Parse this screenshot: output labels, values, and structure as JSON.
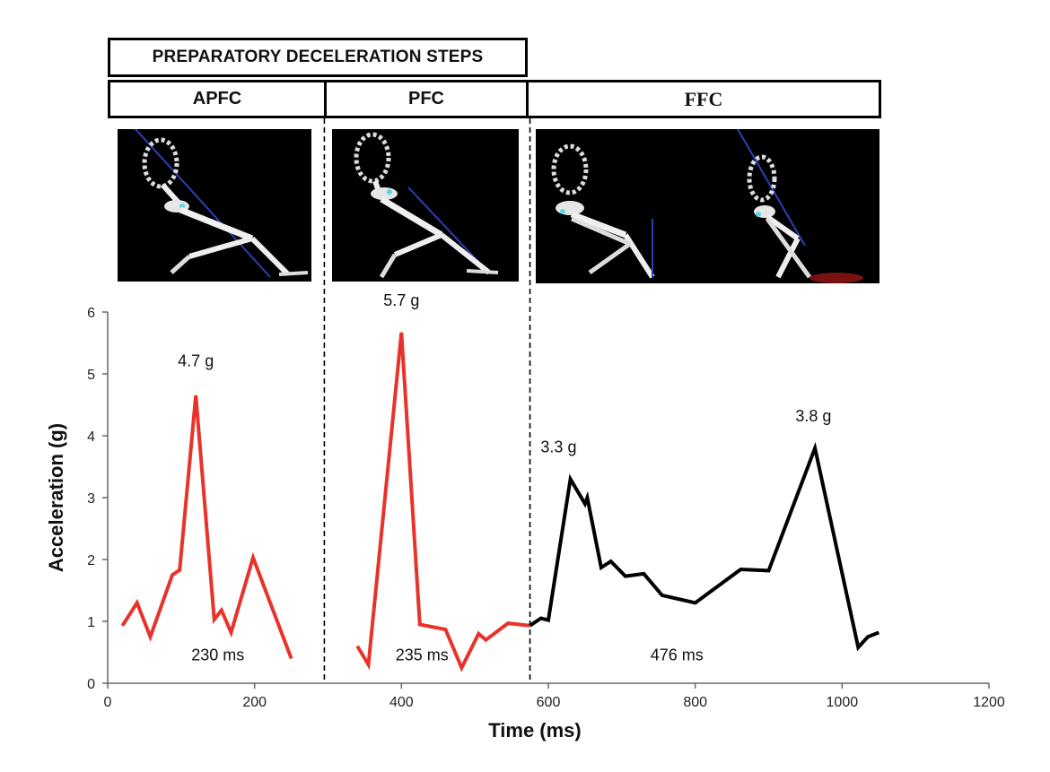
{
  "header": {
    "title": "PREPARATORY DECELERATION STEPS",
    "phases": [
      "APFC",
      "PFC",
      "FFC"
    ]
  },
  "images": {
    "apfc": "skeleton-simulation-apfc",
    "pfc": "skeleton-simulation-pfc",
    "ffc": "skeleton-simulation-ffc"
  },
  "colors": {
    "prep_series": "#e8332a",
    "ffc_series": "#000000",
    "panel_bg": "#000000"
  },
  "chart_data": {
    "type": "line",
    "xlabel": "Time (ms)",
    "ylabel": "Acceleration (g)",
    "xlim": [
      0,
      1200
    ],
    "ylim": [
      0,
      6
    ],
    "xticks": [
      0,
      200,
      400,
      600,
      800,
      1000,
      1200
    ],
    "yticks": [
      0,
      1,
      2,
      3,
      4,
      5,
      6
    ],
    "phase_dividers": [
      295,
      575
    ],
    "series": [
      {
        "name": "APFC",
        "color": "#e8332a",
        "points": [
          [
            20,
            0.93
          ],
          [
            40,
            1.3
          ],
          [
            58,
            0.75
          ],
          [
            88,
            1.75
          ],
          [
            98,
            1.83
          ],
          [
            120,
            4.65
          ],
          [
            145,
            1.03
          ],
          [
            155,
            1.18
          ],
          [
            168,
            0.82
          ],
          [
            198,
            2.03
          ],
          [
            250,
            0.4
          ]
        ]
      },
      {
        "name": "PFC",
        "color": "#e8332a",
        "points": [
          [
            340,
            0.6
          ],
          [
            355,
            0.3
          ],
          [
            400,
            5.67
          ],
          [
            425,
            0.95
          ],
          [
            460,
            0.87
          ],
          [
            482,
            0.25
          ],
          [
            505,
            0.8
          ],
          [
            515,
            0.7
          ],
          [
            545,
            0.97
          ],
          [
            575,
            0.93
          ]
        ]
      },
      {
        "name": "FFC",
        "color": "#000000",
        "points": [
          [
            575,
            0.93
          ],
          [
            590,
            1.05
          ],
          [
            600,
            1.02
          ],
          [
            630,
            3.3
          ],
          [
            650,
            2.9
          ],
          [
            653,
            3.0
          ],
          [
            672,
            1.87
          ],
          [
            685,
            1.97
          ],
          [
            705,
            1.73
          ],
          [
            730,
            1.77
          ],
          [
            755,
            1.42
          ],
          [
            800,
            1.3
          ],
          [
            862,
            1.84
          ],
          [
            900,
            1.82
          ],
          [
            963,
            3.8
          ],
          [
            1022,
            0.58
          ],
          [
            1035,
            0.75
          ],
          [
            1050,
            0.82
          ]
        ]
      }
    ],
    "annotations": [
      {
        "text": "4.7 g",
        "x": 120,
        "y": 5.12
      },
      {
        "text": "5.7 g",
        "x": 400,
        "y": 6.1
      },
      {
        "text": "3.3 g",
        "x": 614,
        "y": 3.73
      },
      {
        "text": "3.8 g",
        "x": 961,
        "y": 4.23
      },
      {
        "text": "230 ms",
        "x": 150,
        "y": 0.37
      },
      {
        "text": "235 ms",
        "x": 428,
        "y": 0.37
      },
      {
        "text": "476 ms",
        "x": 775,
        "y": 0.37
      }
    ]
  }
}
